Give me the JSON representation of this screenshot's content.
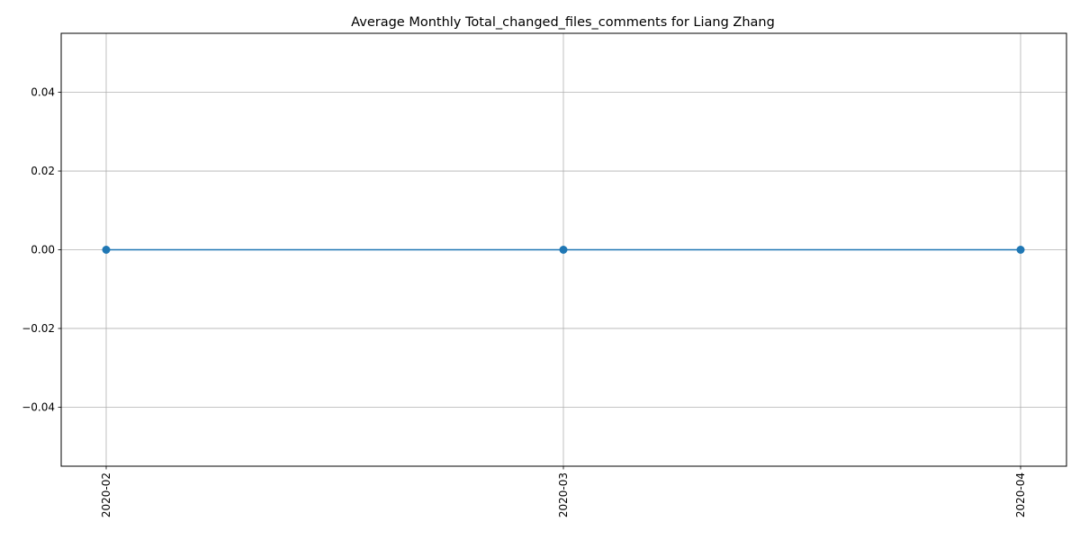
{
  "chart_data": {
    "type": "line",
    "title": "Average Monthly Total_changed_files_comments for Liang Zhang",
    "xlabel": "",
    "ylabel": "",
    "categories": [
      "2020-02",
      "2020-03",
      "2020-04"
    ],
    "series": [
      {
        "values": [
          0.0,
          0.0,
          0.0
        ],
        "color": "#1f77b4",
        "marker": "circle"
      }
    ],
    "ylim": [
      -0.055,
      0.055
    ],
    "yticks": [
      0.04,
      0.02,
      0.0,
      -0.02,
      -0.04
    ],
    "ytick_labels": [
      "0.04",
      "0.02",
      "0.00",
      "−0.02",
      "−0.04"
    ],
    "x_tick_rotation": "vertical",
    "grid": true,
    "legend": "none"
  }
}
